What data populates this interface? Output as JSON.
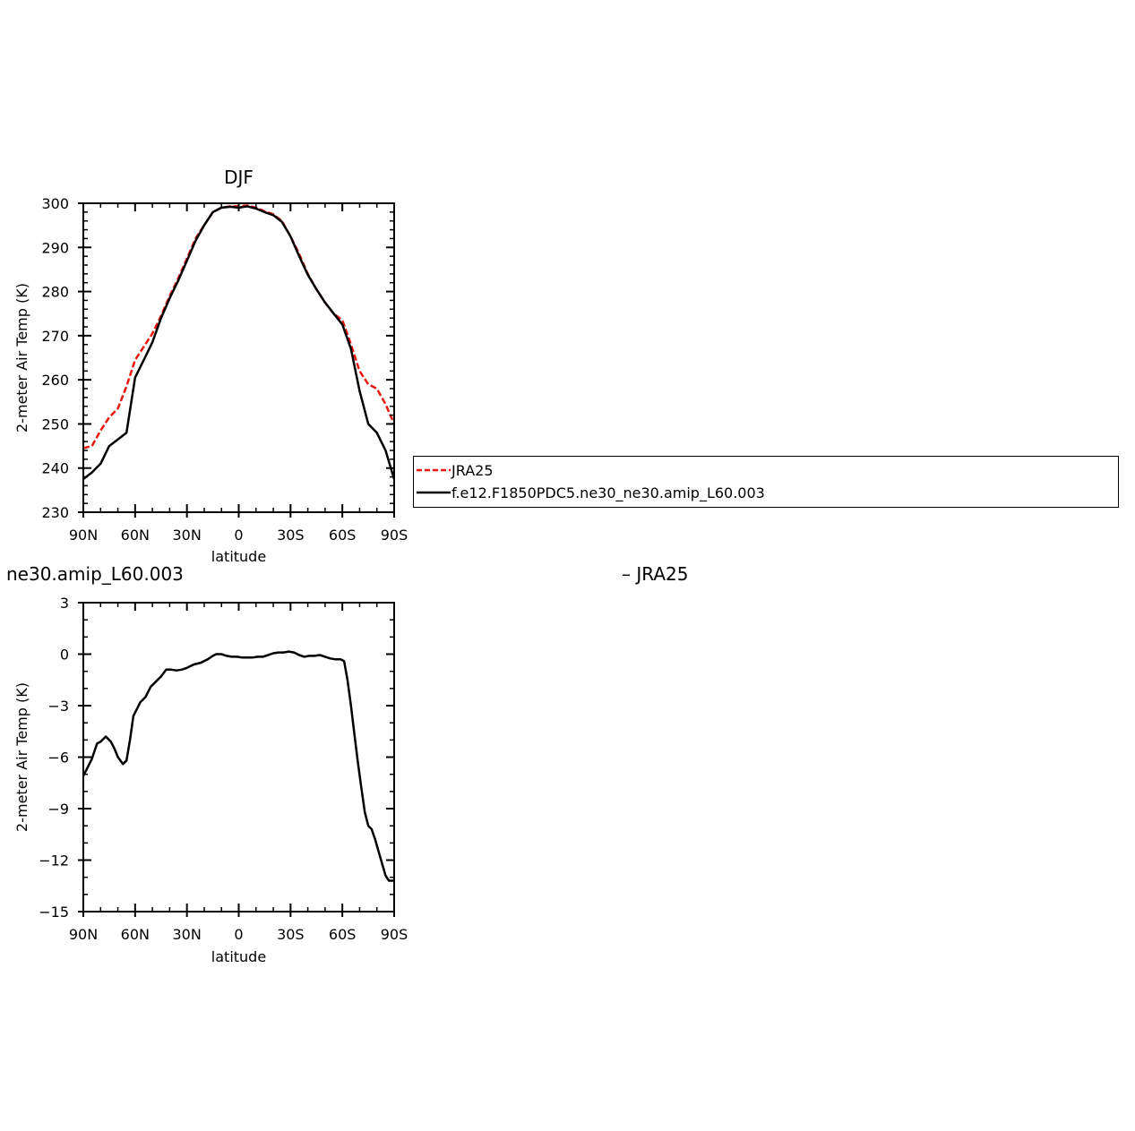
{
  "chart_data": [
    {
      "type": "line",
      "title": "DJF",
      "xlabel": "latitude",
      "ylabel": "2-meter Air Temp (K)",
      "x_tick_labels": [
        "90N",
        "60N",
        "30N",
        "0",
        "30S",
        "60S",
        "90S"
      ],
      "x_tick_values": [
        90,
        60,
        30,
        0,
        -30,
        -60,
        -90
      ],
      "xlim": [
        90,
        -90
      ],
      "y_tick_labels": [
        "230",
        "240",
        "250",
        "260",
        "270",
        "280",
        "290",
        "300"
      ],
      "y_tick_values": [
        230,
        240,
        250,
        260,
        270,
        280,
        290,
        300
      ],
      "ylim": [
        230,
        300
      ],
      "grid": false,
      "legend": {
        "position": "right",
        "entries": [
          "JRA25",
          "f.e12.F1850PDC5.ne30_ne30.amip_L60.003"
        ]
      },
      "x": [
        90,
        85,
        80,
        75,
        70,
        65,
        60,
        55,
        50,
        45,
        40,
        35,
        30,
        25,
        20,
        15,
        10,
        5,
        0,
        -5,
        -10,
        -15,
        -20,
        -25,
        -30,
        -35,
        -40,
        -45,
        -50,
        -55,
        -60,
        -65,
        -70,
        -75,
        -80,
        -85,
        -90
      ],
      "series": [
        {
          "name": "JRA25",
          "color": "#e8170f",
          "style": "dashed",
          "values": [
            244.5,
            245.0,
            248.5,
            251.5,
            253.5,
            258.5,
            264.5,
            267.5,
            270.5,
            274.5,
            279.0,
            283.0,
            287.5,
            292.0,
            295.0,
            298.0,
            299.0,
            299.3,
            299.3,
            299.5,
            299.0,
            298.2,
            297.5,
            296.0,
            292.5,
            288.5,
            284.0,
            280.5,
            277.5,
            275.0,
            273.5,
            268.0,
            262.0,
            259.0,
            258.0,
            254.5,
            250.0
          ]
        },
        {
          "name": "f.e12.F1850PDC5.ne30_ne30.amip_L60.003",
          "color": "#000000",
          "style": "solid",
          "values": [
            237.5,
            239.0,
            241.0,
            245.0,
            246.5,
            248.0,
            260.5,
            264.5,
            268.5,
            274.0,
            278.5,
            282.5,
            287.0,
            291.5,
            295.0,
            298.0,
            299.0,
            299.2,
            299.0,
            299.3,
            298.8,
            298.0,
            297.3,
            295.8,
            292.5,
            288.0,
            283.8,
            280.5,
            277.5,
            275.0,
            272.5,
            267.0,
            257.5,
            250.0,
            248.0,
            244.0,
            237.5
          ]
        }
      ]
    },
    {
      "type": "line",
      "title": "ne30.amip_L60.003",
      "title_right": "– JRA25",
      "xlabel": "latitude",
      "ylabel": "2-meter Air Temp (K)",
      "x_tick_labels": [
        "90N",
        "60N",
        "30N",
        "0",
        "30S",
        "60S",
        "90S"
      ],
      "x_tick_values": [
        90,
        60,
        30,
        0,
        -30,
        -60,
        -90
      ],
      "xlim": [
        90,
        -90
      ],
      "y_tick_labels": [
        "3",
        "0",
        "-3",
        "-6",
        "-9",
        "-12",
        "-15"
      ],
      "y_tick_values": [
        3,
        0,
        -3,
        -6,
        -9,
        -12,
        -15
      ],
      "ylim": [
        -15,
        3
      ],
      "grid": false,
      "x": [
        90,
        85,
        82,
        80,
        77,
        74,
        72,
        70,
        67,
        65,
        63,
        61,
        59,
        57,
        54,
        51,
        48,
        45,
        42,
        39,
        36,
        33,
        30,
        26,
        22,
        18,
        15,
        13,
        10,
        7,
        4,
        1,
        -2,
        -5,
        -8,
        -11,
        -14,
        -17,
        -20,
        -23,
        -26,
        -29,
        -32,
        -35,
        -38,
        -41,
        -44,
        -47,
        -50,
        -53,
        -56,
        -59,
        -61,
        -63,
        -65,
        -67,
        -69,
        -71,
        -73,
        -75,
        -77,
        -79,
        -81,
        -83,
        -85,
        -87,
        -89,
        -90
      ],
      "series": [
        {
          "name": "",
          "color": "#000000",
          "style": "solid",
          "values": [
            -7.1,
            -6.1,
            -5.2,
            -5.1,
            -4.8,
            -5.1,
            -5.5,
            -6.0,
            -6.4,
            -6.2,
            -5.0,
            -3.6,
            -3.2,
            -2.8,
            -2.5,
            -1.9,
            -1.6,
            -1.3,
            -0.9,
            -0.9,
            -0.95,
            -0.9,
            -0.8,
            -0.6,
            -0.5,
            -0.3,
            -0.1,
            0.0,
            0.0,
            -0.1,
            -0.15,
            -0.15,
            -0.2,
            -0.2,
            -0.2,
            -0.15,
            -0.15,
            -0.05,
            0.05,
            0.1,
            0.1,
            0.15,
            0.1,
            -0.05,
            -0.15,
            -0.1,
            -0.1,
            -0.05,
            -0.15,
            -0.25,
            -0.3,
            -0.3,
            -0.4,
            -1.5,
            -3.0,
            -4.7,
            -6.3,
            -7.8,
            -9.2,
            -10.0,
            -10.2,
            -10.8,
            -11.5,
            -12.2,
            -12.9,
            -13.2,
            -13.2,
            -13.2
          ]
        }
      ]
    }
  ]
}
